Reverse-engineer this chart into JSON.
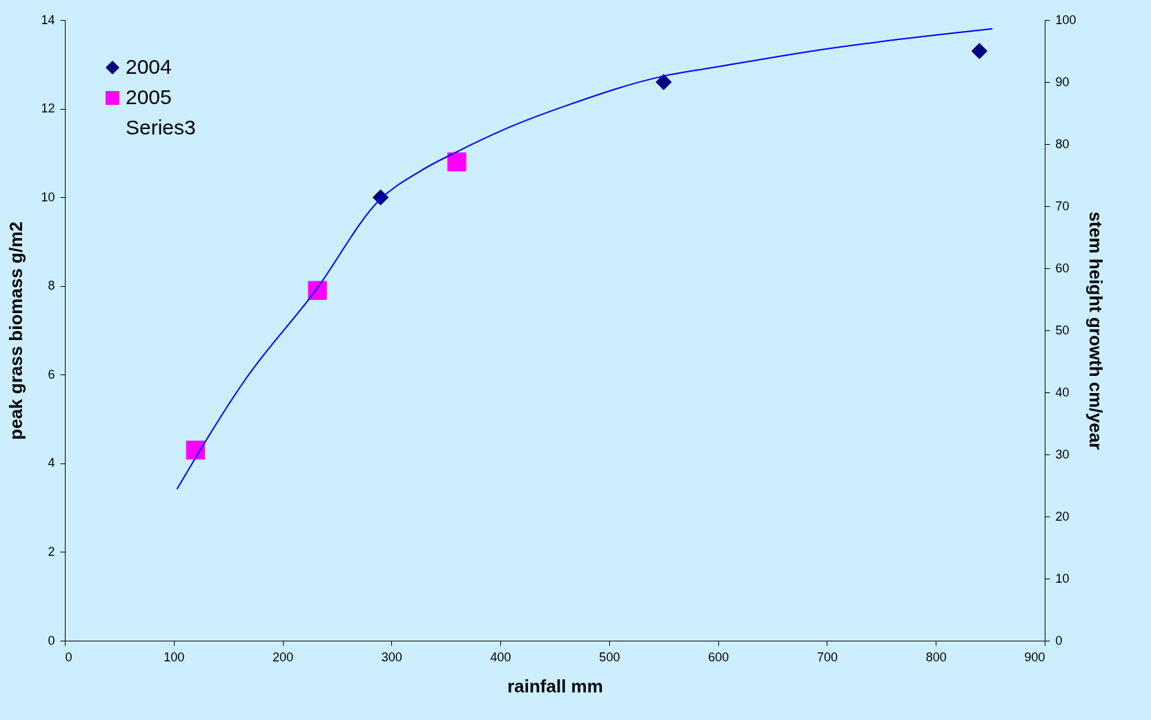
{
  "chart_data": {
    "type": "scatter",
    "xlabel": "rainfall mm",
    "ylabel": "peak grass biomass g/m2",
    "y2label": "stem height growth cm/year",
    "xlim": [
      0,
      900
    ],
    "xticks": [
      0,
      100,
      200,
      300,
      400,
      500,
      600,
      700,
      800,
      900
    ],
    "ylim": [
      0,
      14
    ],
    "yticks": [
      0,
      2,
      4,
      6,
      8,
      10,
      12,
      14
    ],
    "y2lim": [
      0,
      100
    ],
    "y2ticks": [
      0,
      10,
      20,
      30,
      40,
      50,
      60,
      70,
      80,
      90,
      100
    ],
    "grid": false,
    "legend": "top left",
    "series": [
      {
        "name": "2004",
        "marker": "diamond",
        "color": "#000080",
        "x": [
          290,
          550,
          840
        ],
        "values": [
          10.0,
          12.6,
          13.3
        ]
      },
      {
        "name": "2005",
        "marker": "square",
        "color": "#ff00ff",
        "x": [
          120,
          232,
          360
        ],
        "values": [
          4.3,
          7.9,
          10.8
        ]
      },
      {
        "name": "Series3",
        "marker": "none",
        "axis": "y2"
      },
      {
        "type": "line",
        "color": "#0000ff",
        "x": [
          103,
          166,
          230,
          289,
          327,
          361,
          408,
          462,
          549,
          596,
          697,
          852
        ],
        "values": [
          3.42,
          5.9,
          7.89,
          9.94,
          10.6,
          11.04,
          11.58,
          12.08,
          12.73,
          12.93,
          13.34,
          13.8
        ]
      }
    ]
  }
}
